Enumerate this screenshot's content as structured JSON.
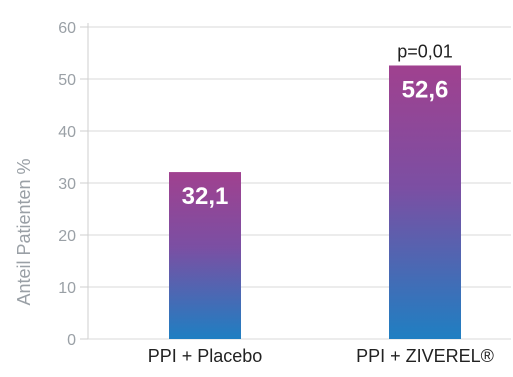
{
  "chart_data": {
    "type": "bar",
    "ylabel": "Anteil Patienten %",
    "ylim": [
      0,
      60
    ],
    "yticks": [
      "0",
      "10",
      "20",
      "30",
      "40",
      "50",
      "60"
    ],
    "categories": [
      "PPI + Placebo",
      "PPI + ZIVEREL®"
    ],
    "values": [
      32.1,
      52.6
    ],
    "value_labels": [
      "32,1",
      "52,6"
    ],
    "annotations": [
      {
        "category_index": 1,
        "text": "p=0,01"
      }
    ],
    "grid": true,
    "colors": {
      "bar_top": "#a0418f",
      "bar_bottom": "#1f7fc2",
      "grid": "#d9d9d9",
      "axis": "#cfcfcf"
    }
  }
}
